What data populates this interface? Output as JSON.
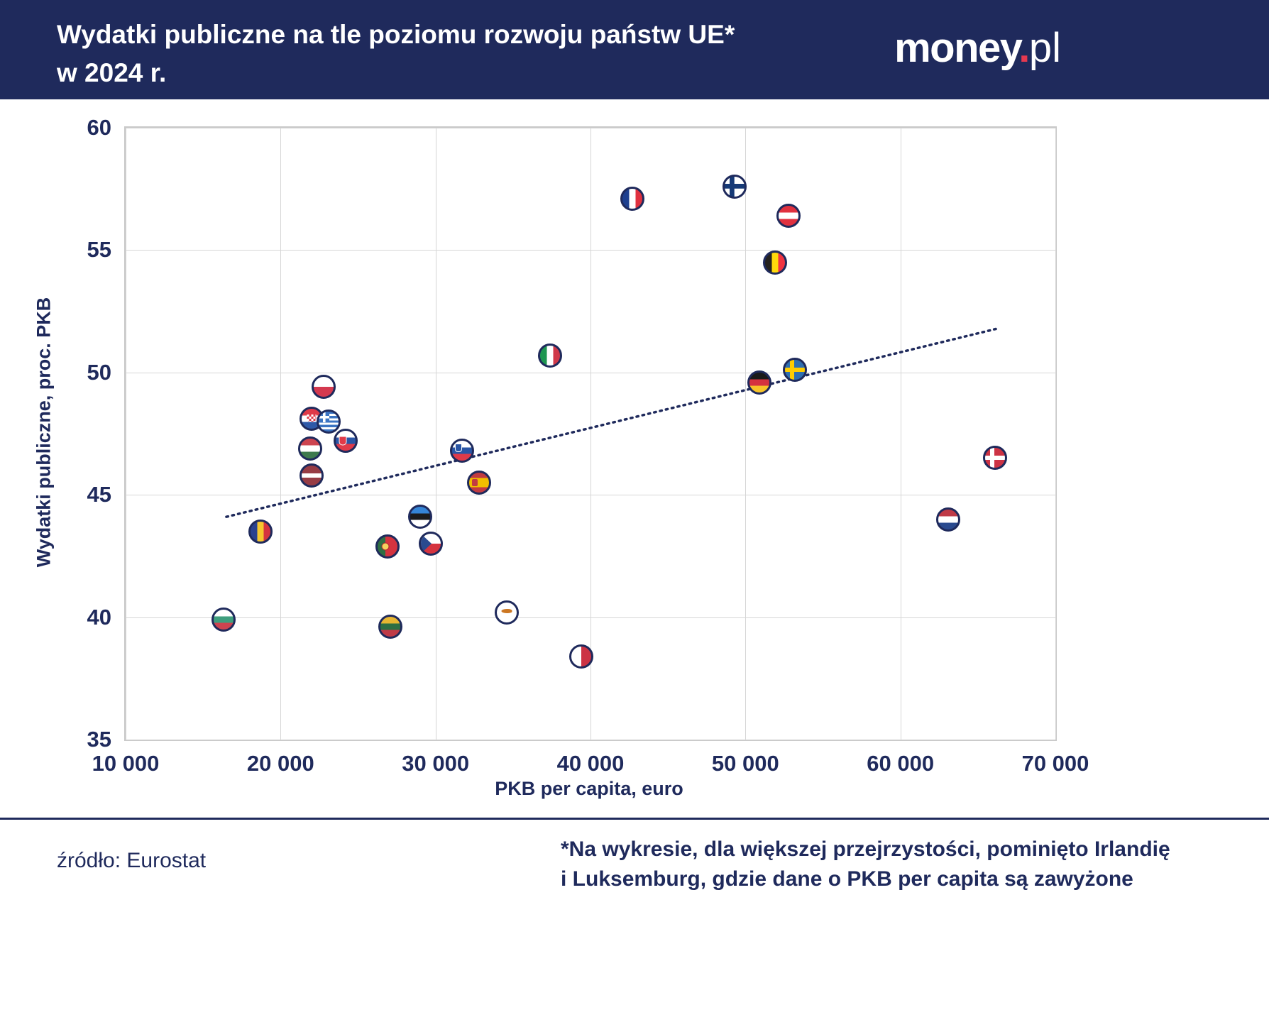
{
  "header": {
    "title_line1": "Wydatki publiczne na tle poziomu rozwoju państw UE*",
    "title_line2": "w 2024 r.",
    "logo_money": "money",
    "logo_dot": ".",
    "logo_pl": "pl"
  },
  "colors": {
    "navy": "#1f2a5c",
    "accent_red": "#e63950",
    "grid": "#d6d6d6"
  },
  "chart_data": {
    "type": "scatter",
    "title": "Wydatki publiczne na tle poziomu rozwoju państw UE* w 2024 r.",
    "xlabel": "PKB per capita, euro",
    "ylabel": "Wydatki publiczne, proc. PKB",
    "xlim": [
      10000,
      70000
    ],
    "ylim": [
      35,
      60
    ],
    "x_ticks": [
      10000,
      20000,
      30000,
      40000,
      50000,
      60000,
      70000
    ],
    "x_tick_labels": [
      "10 000",
      "20 000",
      "30 000",
      "40 000",
      "50 000",
      "60 000",
      "70 000"
    ],
    "y_ticks": [
      35,
      40,
      45,
      50,
      55,
      60
    ],
    "grid": true,
    "marker_style": "country-flag-circle",
    "points": [
      {
        "country": "Finlandia",
        "code": "fi",
        "x": 49300,
        "y": 57.6
      },
      {
        "country": "Francja",
        "code": "fr",
        "x": 42700,
        "y": 57.1
      },
      {
        "country": "Austria",
        "code": "at",
        "x": 52800,
        "y": 56.4
      },
      {
        "country": "Belgia",
        "code": "be",
        "x": 51900,
        "y": 54.5
      },
      {
        "country": "Włochy",
        "code": "it",
        "x": 37400,
        "y": 50.7
      },
      {
        "country": "Szwecja",
        "code": "se",
        "x": 53200,
        "y": 50.1
      },
      {
        "country": "Niemcy",
        "code": "de",
        "x": 50900,
        "y": 49.6
      },
      {
        "country": "Polska",
        "code": "pl",
        "x": 22800,
        "y": 49.4
      },
      {
        "country": "Chorwacja",
        "code": "hr",
        "x": 22000,
        "y": 48.1
      },
      {
        "country": "Grecja",
        "code": "gr",
        "x": 23100,
        "y": 48.0
      },
      {
        "country": "Słowacja",
        "code": "sk",
        "x": 24200,
        "y": 47.2
      },
      {
        "country": "Węgry",
        "code": "hu",
        "x": 21900,
        "y": 46.9
      },
      {
        "country": "Słowenia",
        "code": "si",
        "x": 31700,
        "y": 46.8
      },
      {
        "country": "Dania",
        "code": "dk",
        "x": 66100,
        "y": 46.5
      },
      {
        "country": "Łotwa",
        "code": "lv",
        "x": 22000,
        "y": 45.8
      },
      {
        "country": "Hiszpania",
        "code": "es",
        "x": 32800,
        "y": 45.5
      },
      {
        "country": "Estonia",
        "code": "ee",
        "x": 29000,
        "y": 44.1
      },
      {
        "country": "Holandia",
        "code": "nl",
        "x": 63100,
        "y": 44.0
      },
      {
        "country": "Rumunia",
        "code": "ro",
        "x": 18700,
        "y": 43.5
      },
      {
        "country": "Czechy",
        "code": "cz",
        "x": 29700,
        "y": 43.0
      },
      {
        "country": "Portugalia",
        "code": "pt",
        "x": 26900,
        "y": 42.9
      },
      {
        "country": "Cypr",
        "code": "cy",
        "x": 34600,
        "y": 40.2
      },
      {
        "country": "Bułgaria",
        "code": "bg",
        "x": 16300,
        "y": 39.9
      },
      {
        "country": "Litwa",
        "code": "lt",
        "x": 27100,
        "y": 39.6
      },
      {
        "country": "Malta",
        "code": "mt",
        "x": 39400,
        "y": 38.4
      }
    ],
    "trendline": {
      "style": "dotted",
      "x1": 16500,
      "y1": 44.1,
      "x2": 66300,
      "y2": 51.8
    },
    "legend": "none"
  },
  "footer": {
    "source": "źródło: Eurostat",
    "note_line1": "*Na wykresie, dla większej przejrzystości, pominięto Irlandię",
    "note_line2": "i Luksemburg, gdzie dane o PKB per capita są zawyżone"
  }
}
